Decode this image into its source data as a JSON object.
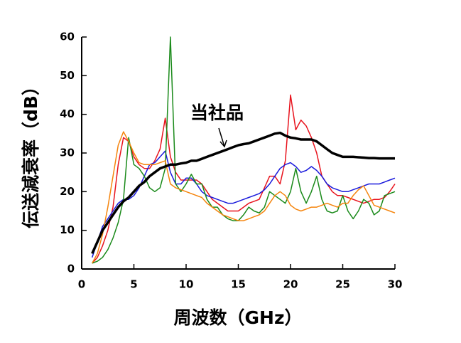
{
  "chart_data": {
    "type": "line",
    "xlabel": "周波数（GHz）",
    "ylabel": "伝送減衰率（dB）",
    "annotation": "当社品",
    "xlim": [
      0,
      30
    ],
    "xticks": [
      0,
      5,
      10,
      15,
      20,
      25,
      30
    ],
    "ylim": [
      0,
      60
    ],
    "yticks": [
      0,
      10,
      20,
      30,
      40,
      50,
      60
    ],
    "x": [
      1,
      1.5,
      2,
      2.5,
      3,
      3.5,
      4,
      4.5,
      5,
      5.5,
      6,
      6.5,
      7,
      7.5,
      8,
      8.5,
      9,
      9.5,
      10,
      10.5,
      11,
      11.5,
      12,
      12.5,
      13,
      13.5,
      14,
      14.5,
      15,
      15.5,
      16,
      16.5,
      17,
      17.5,
      18,
      18.5,
      19,
      19.5,
      20,
      20.5,
      21,
      21.5,
      22,
      22.5,
      23,
      23.5,
      24,
      24.5,
      25,
      25.5,
      26,
      26.5,
      27,
      27.5,
      28,
      28.5,
      29,
      29.5,
      30
    ],
    "series": [
      {
        "color": "#e8121c",
        "values": [
          1.5,
          3,
          6,
          10,
          16,
          27,
          34,
          33,
          29,
          27,
          26,
          26,
          28,
          31,
          39,
          29,
          25,
          23,
          23,
          23,
          23,
          22,
          20,
          18,
          17,
          16,
          15,
          15,
          15,
          16,
          17,
          17.5,
          18,
          21,
          24,
          24,
          22,
          28,
          45,
          36,
          38.5,
          37,
          34,
          30,
          24,
          22,
          20,
          19,
          19,
          18.5,
          18,
          17.5,
          17,
          17.5,
          18,
          18,
          18.5,
          20,
          22
        ]
      },
      {
        "color": "#1a1adc",
        "values": [
          3,
          7,
          11,
          13,
          15,
          17,
          18,
          18,
          19,
          21,
          24,
          27,
          27.5,
          29,
          30.5,
          25,
          22,
          22,
          23.5,
          23.5,
          22,
          20,
          19,
          18.5,
          18,
          17.5,
          17,
          17,
          17.5,
          18,
          18.5,
          19,
          19.5,
          20.5,
          22,
          24,
          26,
          27,
          27.5,
          26.5,
          25,
          25.5,
          26.5,
          25.5,
          24,
          22,
          21,
          20.5,
          20,
          20,
          20.5,
          21,
          21.5,
          22,
          22,
          22,
          22.5,
          23,
          23.5
        ]
      },
      {
        "color": "#1a8a1a",
        "values": [
          1.5,
          2,
          3,
          5,
          8,
          12,
          18,
          34,
          27,
          26,
          24,
          21,
          20,
          21,
          26,
          60,
          22,
          20,
          22,
          24.5,
          22,
          22,
          18,
          16,
          16,
          14,
          13,
          12.5,
          12.5,
          14,
          16,
          15,
          14.5,
          16,
          20,
          19,
          18,
          17,
          20,
          26,
          20,
          17,
          20,
          24,
          18,
          15,
          14.5,
          15,
          19,
          15,
          13,
          15,
          18,
          17,
          14,
          15,
          19,
          19.5,
          20
        ]
      },
      {
        "color": "#f5840c",
        "values": [
          1.5,
          4,
          9,
          16,
          24,
          32,
          35.5,
          33,
          30,
          27.5,
          27,
          27,
          27,
          27.5,
          28,
          22,
          21,
          20.5,
          20,
          19.5,
          19,
          18.5,
          17,
          16,
          15,
          14,
          13.5,
          13,
          12.5,
          12.5,
          13,
          13.5,
          14,
          15,
          17,
          19,
          20,
          19,
          16.5,
          15.5,
          15,
          15.5,
          16,
          16,
          16.5,
          17,
          16.5,
          16,
          17,
          17,
          19,
          20.5,
          21.5,
          19,
          16.5,
          16,
          15.5,
          15,
          14.5
        ]
      },
      {
        "color": "#000000",
        "width": 3.5,
        "values": [
          4,
          7,
          10,
          12,
          14,
          16,
          17.5,
          18.5,
          20,
          21.5,
          22.5,
          24,
          25,
          26,
          26.5,
          27,
          27,
          27.3,
          27.5,
          28,
          28,
          28.5,
          29,
          29.5,
          30,
          30.5,
          31,
          31.5,
          32,
          32.3,
          32.5,
          33,
          33.5,
          34,
          34.5,
          35,
          35.2,
          34.5,
          34,
          33.8,
          33.5,
          33.5,
          33.5,
          33,
          32,
          31,
          30,
          29.5,
          29,
          29,
          29,
          28.9,
          28.8,
          28.7,
          28.7,
          28.6,
          28.6,
          28.6,
          28.6
        ]
      }
    ]
  }
}
